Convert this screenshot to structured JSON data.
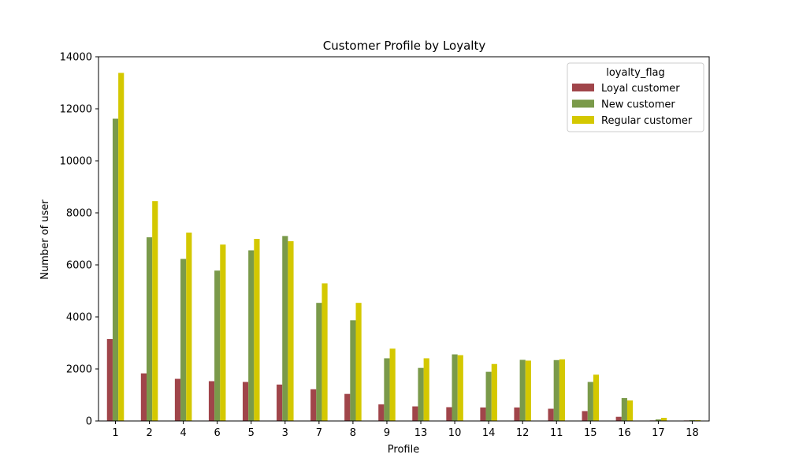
{
  "chart_data": {
    "type": "bar",
    "title": "Customer Profile by Loyalty",
    "xlabel": "Profile",
    "ylabel": "Number of user",
    "ylim": [
      0,
      14000
    ],
    "yticks": [
      0,
      2000,
      4000,
      6000,
      8000,
      10000,
      12000,
      14000
    ],
    "grid": false,
    "legend": {
      "title": "loyalty_flag",
      "position": "top-right"
    },
    "categories": [
      "1",
      "2",
      "4",
      "6",
      "5",
      "3",
      "7",
      "8",
      "9",
      "13",
      "10",
      "14",
      "12",
      "11",
      "15",
      "16",
      "17",
      "18"
    ],
    "series": [
      {
        "name": "Loyal customer",
        "color": "#a0454a",
        "values": [
          3150,
          1830,
          1620,
          1530,
          1500,
          1400,
          1220,
          1040,
          640,
          560,
          530,
          520,
          520,
          470,
          380,
          160,
          20,
          20
        ]
      },
      {
        "name": "New customer",
        "color": "#7a9a4a",
        "values": [
          11620,
          7060,
          6230,
          5780,
          6560,
          7110,
          4540,
          3870,
          2410,
          2040,
          2560,
          1890,
          2350,
          2340,
          1500,
          880,
          60,
          30
        ]
      },
      {
        "name": "Regular customer",
        "color": "#d4c800",
        "values": [
          13380,
          8450,
          7240,
          6780,
          7000,
          6910,
          5290,
          4540,
          2780,
          2410,
          2530,
          2190,
          2320,
          2370,
          1780,
          790,
          120,
          30
        ]
      }
    ]
  }
}
